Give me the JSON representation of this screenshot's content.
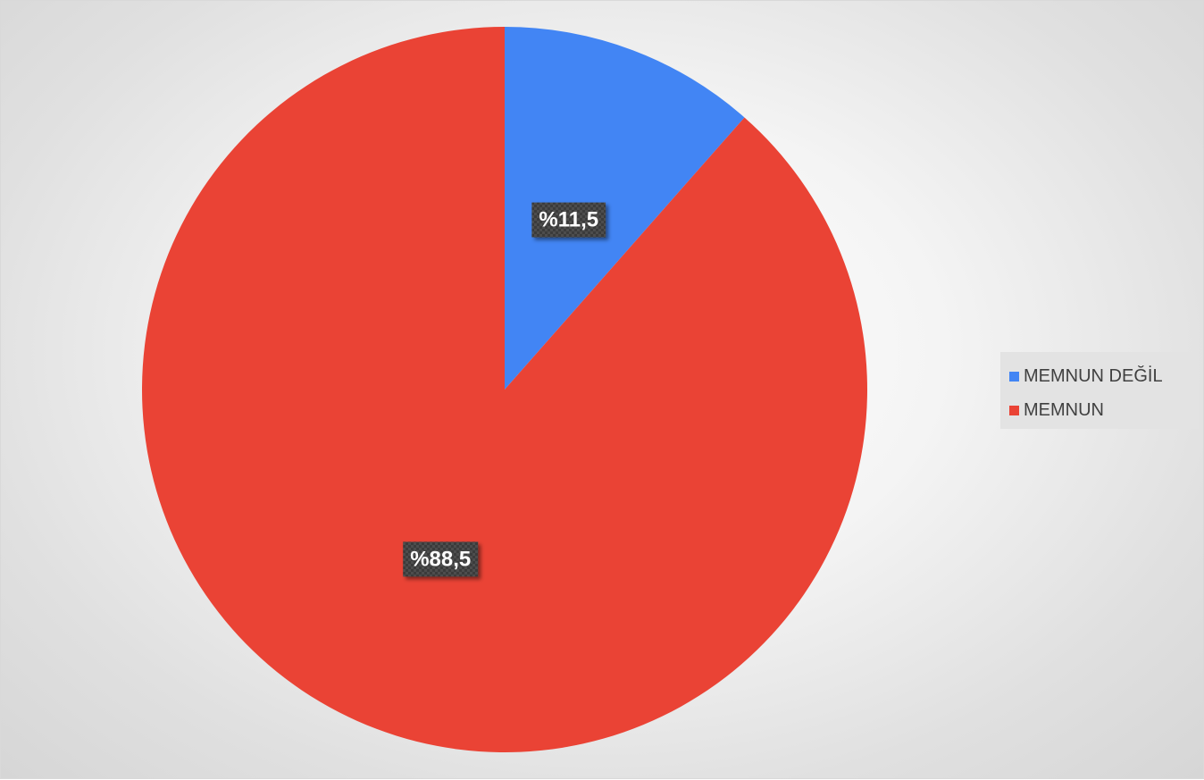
{
  "chart_data": {
    "type": "pie",
    "categories": [
      "MEMNUN DEĞİL",
      "MEMNUN"
    ],
    "values": [
      11.5,
      88.5
    ],
    "data_labels": [
      "%11,5",
      "%88,5"
    ],
    "colors": [
      "#4285f4",
      "#ea4335"
    ],
    "legend_position": "right",
    "start": "top",
    "direction": "clockwise"
  }
}
